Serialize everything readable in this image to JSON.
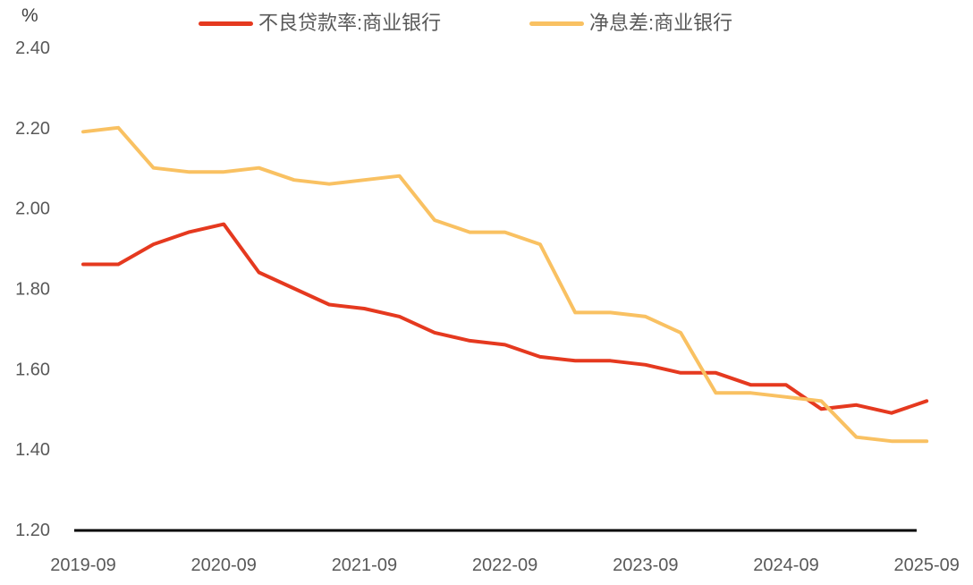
{
  "chart_data": {
    "type": "line",
    "title": "",
    "unit_label": "%",
    "grid": false,
    "legend_position": "top",
    "xlabel": "",
    "ylabel": "%",
    "ylim": [
      1.2,
      2.4
    ],
    "y_ticks": [
      2.4,
      2.2,
      2.0,
      1.8,
      1.6,
      1.4,
      1.2
    ],
    "categories": [
      "2019-09",
      "2019-12",
      "2020-03",
      "2020-06",
      "2020-09",
      "2020-12",
      "2021-03",
      "2021-06",
      "2021-09",
      "2021-12",
      "2022-03",
      "2022-06",
      "2022-09",
      "2022-12",
      "2023-03",
      "2023-06",
      "2023-09",
      "2023-12",
      "2024-03",
      "2024-06",
      "2024-09",
      "2024-12",
      "2025-03",
      "2025-06",
      "2025-09"
    ],
    "x_tick_indices": [
      0,
      4,
      8,
      12,
      16,
      20,
      24
    ],
    "x_tick_labels": [
      "2019-09",
      "2020-09",
      "2021-09",
      "2022-09",
      "2023-09",
      "2024-09",
      "2025-09"
    ],
    "series": [
      {
        "name": "不良贷款率:商业银行",
        "color": "#e5391f",
        "values": [
          1.86,
          1.86,
          1.91,
          1.94,
          1.96,
          1.84,
          1.8,
          1.76,
          1.75,
          1.73,
          1.69,
          1.67,
          1.66,
          1.63,
          1.62,
          1.62,
          1.61,
          1.59,
          1.59,
          1.56,
          1.56,
          1.5,
          1.51,
          1.49,
          1.52
        ]
      },
      {
        "name": "净息差:商业银行",
        "color": "#f9c162",
        "values": [
          2.19,
          2.2,
          2.1,
          2.09,
          2.09,
          2.1,
          2.07,
          2.06,
          2.07,
          2.08,
          1.97,
          1.94,
          1.94,
          1.91,
          1.74,
          1.74,
          1.73,
          1.69,
          1.54,
          1.54,
          1.53,
          1.52,
          1.43,
          1.42,
          1.42
        ]
      }
    ],
    "colors": {
      "axis": "#000000",
      "tick_text": "#595959",
      "background": "#ffffff"
    }
  }
}
